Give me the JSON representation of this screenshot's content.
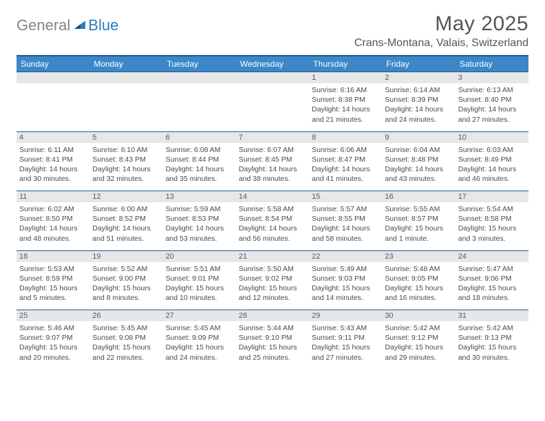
{
  "logo": {
    "general": "General",
    "blue": "Blue"
  },
  "header": {
    "month_title": "May 2025",
    "location": "Crans-Montana, Valais, Switzerland"
  },
  "colors": {
    "header_bg": "#3b87c8",
    "header_border_top": "#1e5a8e",
    "daynum_bg": "#e7e7e7",
    "row_border": "#1e5a8e",
    "logo_gray": "#868686",
    "logo_blue": "#2b7bbf",
    "text": "#4a4a4a",
    "bg": "#ffffff"
  },
  "typography": {
    "month_title_fontsize": 30,
    "location_fontsize": 16,
    "weekday_fontsize": 12,
    "daynum_fontsize": 11,
    "detail_fontsize": 10.5
  },
  "weekdays": [
    "Sunday",
    "Monday",
    "Tuesday",
    "Wednesday",
    "Thursday",
    "Friday",
    "Saturday"
  ],
  "weeks": [
    {
      "daynums": [
        "",
        "",
        "",
        "",
        "1",
        "2",
        "3"
      ],
      "details": [
        "",
        "",
        "",
        "",
        "Sunrise: 6:16 AM\nSunset: 8:38 PM\nDaylight: 14 hours and 21 minutes.",
        "Sunrise: 6:14 AM\nSunset: 8:39 PM\nDaylight: 14 hours and 24 minutes.",
        "Sunrise: 6:13 AM\nSunset: 8:40 PM\nDaylight: 14 hours and 27 minutes."
      ]
    },
    {
      "daynums": [
        "4",
        "5",
        "6",
        "7",
        "8",
        "9",
        "10"
      ],
      "details": [
        "Sunrise: 6:11 AM\nSunset: 8:41 PM\nDaylight: 14 hours and 30 minutes.",
        "Sunrise: 6:10 AM\nSunset: 8:43 PM\nDaylight: 14 hours and 32 minutes.",
        "Sunrise: 6:08 AM\nSunset: 8:44 PM\nDaylight: 14 hours and 35 minutes.",
        "Sunrise: 6:07 AM\nSunset: 8:45 PM\nDaylight: 14 hours and 38 minutes.",
        "Sunrise: 6:06 AM\nSunset: 8:47 PM\nDaylight: 14 hours and 41 minutes.",
        "Sunrise: 6:04 AM\nSunset: 8:48 PM\nDaylight: 14 hours and 43 minutes.",
        "Sunrise: 6:03 AM\nSunset: 8:49 PM\nDaylight: 14 hours and 46 minutes."
      ]
    },
    {
      "daynums": [
        "11",
        "12",
        "13",
        "14",
        "15",
        "16",
        "17"
      ],
      "details": [
        "Sunrise: 6:02 AM\nSunset: 8:50 PM\nDaylight: 14 hours and 48 minutes.",
        "Sunrise: 6:00 AM\nSunset: 8:52 PM\nDaylight: 14 hours and 51 minutes.",
        "Sunrise: 5:59 AM\nSunset: 8:53 PM\nDaylight: 14 hours and 53 minutes.",
        "Sunrise: 5:58 AM\nSunset: 8:54 PM\nDaylight: 14 hours and 56 minutes.",
        "Sunrise: 5:57 AM\nSunset: 8:55 PM\nDaylight: 14 hours and 58 minutes.",
        "Sunrise: 5:55 AM\nSunset: 8:57 PM\nDaylight: 15 hours and 1 minute.",
        "Sunrise: 5:54 AM\nSunset: 8:58 PM\nDaylight: 15 hours and 3 minutes."
      ]
    },
    {
      "daynums": [
        "18",
        "19",
        "20",
        "21",
        "22",
        "23",
        "24"
      ],
      "details": [
        "Sunrise: 5:53 AM\nSunset: 8:59 PM\nDaylight: 15 hours and 5 minutes.",
        "Sunrise: 5:52 AM\nSunset: 9:00 PM\nDaylight: 15 hours and 8 minutes.",
        "Sunrise: 5:51 AM\nSunset: 9:01 PM\nDaylight: 15 hours and 10 minutes.",
        "Sunrise: 5:50 AM\nSunset: 9:02 PM\nDaylight: 15 hours and 12 minutes.",
        "Sunrise: 5:49 AM\nSunset: 9:03 PM\nDaylight: 15 hours and 14 minutes.",
        "Sunrise: 5:48 AM\nSunset: 9:05 PM\nDaylight: 15 hours and 16 minutes.",
        "Sunrise: 5:47 AM\nSunset: 9:06 PM\nDaylight: 15 hours and 18 minutes."
      ]
    },
    {
      "daynums": [
        "25",
        "26",
        "27",
        "28",
        "29",
        "30",
        "31"
      ],
      "details": [
        "Sunrise: 5:46 AM\nSunset: 9:07 PM\nDaylight: 15 hours and 20 minutes.",
        "Sunrise: 5:45 AM\nSunset: 9:08 PM\nDaylight: 15 hours and 22 minutes.",
        "Sunrise: 5:45 AM\nSunset: 9:09 PM\nDaylight: 15 hours and 24 minutes.",
        "Sunrise: 5:44 AM\nSunset: 9:10 PM\nDaylight: 15 hours and 25 minutes.",
        "Sunrise: 5:43 AM\nSunset: 9:11 PM\nDaylight: 15 hours and 27 minutes.",
        "Sunrise: 5:42 AM\nSunset: 9:12 PM\nDaylight: 15 hours and 29 minutes.",
        "Sunrise: 5:42 AM\nSunset: 9:13 PM\nDaylight: 15 hours and 30 minutes."
      ]
    }
  ]
}
